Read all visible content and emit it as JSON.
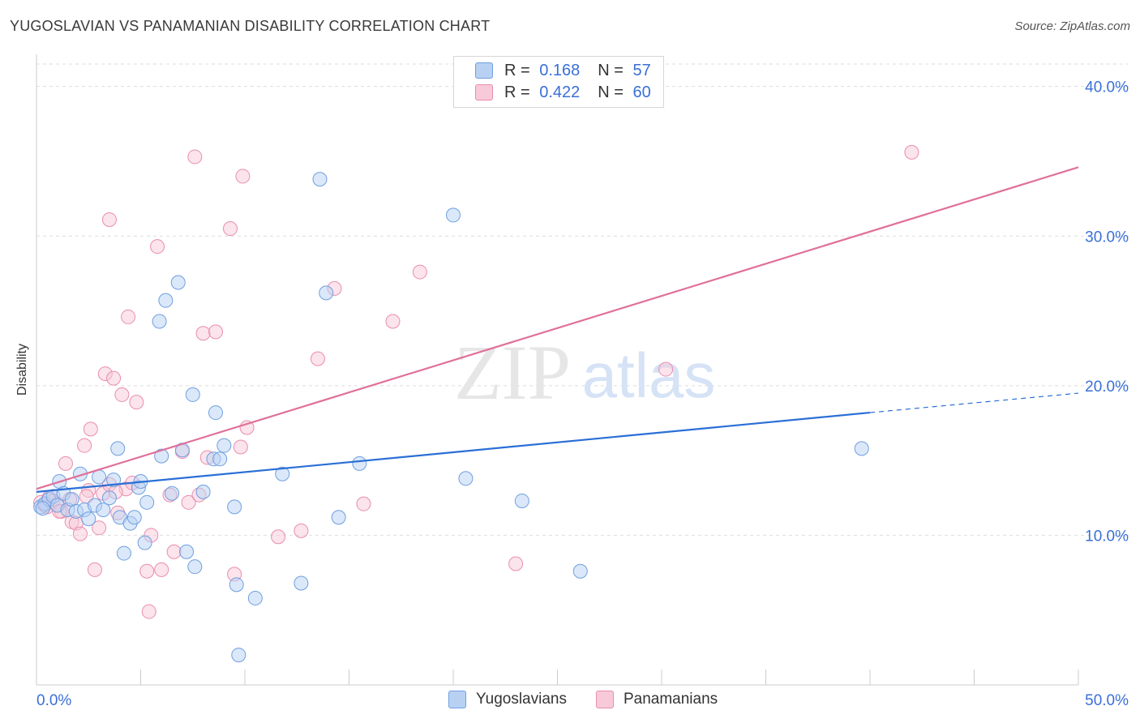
{
  "header": {
    "title": "YUGOSLAVIAN VS PANAMANIAN DISABILITY CORRELATION CHART",
    "source": "Source: ZipAtlas.com"
  },
  "watermark": {
    "zip": "ZIP",
    "atlas": "atlas"
  },
  "legend": {
    "rows": [
      {
        "r_label": "R =",
        "r_value": "0.168",
        "n_label": "N =",
        "n_value": "57"
      },
      {
        "r_label": "R =",
        "r_value": "0.422",
        "n_label": "N =",
        "n_value": "60"
      }
    ]
  },
  "bottom_legend": {
    "series1": "Yugoslavians",
    "series2": "Panamanians"
  },
  "colors": {
    "blue_fill": "#b8d1f3",
    "blue_stroke": "#6f9fe0",
    "blue_line": "#2a6fd6",
    "pink_fill": "#f8c9d8",
    "pink_stroke": "#e98db0",
    "pink_line": "#e0709a",
    "axis_text": "#3a6fd8",
    "grid": "#dddddd"
  },
  "chart_data": {
    "type": "scatter",
    "title": "YUGOSLAVIAN VS PANAMANIAN DISABILITY CORRELATION CHART",
    "xlabel": "",
    "ylabel": "Disability",
    "xlim": [
      0,
      50
    ],
    "ylim": [
      0,
      41.5
    ],
    "x_tick_labels": [
      "0.0%",
      "50.0%"
    ],
    "y_ticks": [
      10,
      20,
      30,
      40
    ],
    "y_tick_labels": [
      "10.0%",
      "20.0%",
      "30.0%",
      "40.0%"
    ],
    "grid": true,
    "legend_position": "top-center",
    "series": [
      {
        "name": "Yugoslavians",
        "r": 0.168,
        "n": 57,
        "trend": {
          "x0": 0,
          "y0": 12.9,
          "x1": 40,
          "y1": 18.2,
          "dash_x_end": 50,
          "dash_y_end": 19.5
        },
        "points": [
          [
            0.2,
            11.9
          ],
          [
            0.4,
            12.1
          ],
          [
            0.6,
            12.4
          ],
          [
            0.8,
            12.6
          ],
          [
            1.0,
            12.0
          ],
          [
            1.1,
            13.6
          ],
          [
            1.3,
            12.8
          ],
          [
            1.5,
            11.7
          ],
          [
            1.7,
            12.4
          ],
          [
            1.9,
            11.6
          ],
          [
            2.1,
            14.1
          ],
          [
            2.3,
            11.7
          ],
          [
            2.5,
            11.1
          ],
          [
            2.8,
            12.0
          ],
          [
            3.0,
            13.9
          ],
          [
            3.2,
            11.7
          ],
          [
            3.5,
            12.5
          ],
          [
            3.7,
            13.7
          ],
          [
            3.9,
            15.8
          ],
          [
            4.0,
            11.2
          ],
          [
            4.2,
            8.8
          ],
          [
            4.5,
            10.8
          ],
          [
            4.7,
            11.2
          ],
          [
            4.9,
            13.2
          ],
          [
            5.0,
            13.6
          ],
          [
            5.2,
            9.5
          ],
          [
            5.3,
            12.2
          ],
          [
            5.9,
            24.3
          ],
          [
            6.0,
            15.3
          ],
          [
            6.2,
            25.7
          ],
          [
            6.5,
            12.8
          ],
          [
            6.8,
            26.9
          ],
          [
            7.0,
            15.7
          ],
          [
            7.2,
            8.9
          ],
          [
            7.5,
            19.4
          ],
          [
            7.6,
            7.9
          ],
          [
            8.0,
            12.9
          ],
          [
            8.5,
            15.1
          ],
          [
            8.6,
            18.2
          ],
          [
            8.8,
            15.1
          ],
          [
            9.0,
            16.0
          ],
          [
            9.5,
            11.9
          ],
          [
            9.6,
            6.7
          ],
          [
            9.7,
            2.0
          ],
          [
            10.5,
            5.8
          ],
          [
            11.8,
            14.1
          ],
          [
            12.7,
            6.8
          ],
          [
            13.6,
            33.8
          ],
          [
            13.9,
            26.2
          ],
          [
            14.5,
            11.2
          ],
          [
            15.5,
            14.8
          ],
          [
            20.0,
            31.4
          ],
          [
            20.6,
            13.8
          ],
          [
            23.3,
            12.3
          ],
          [
            26.1,
            7.6
          ],
          [
            39.6,
            15.8
          ],
          [
            0.3,
            11.8
          ]
        ]
      },
      {
        "name": "Panamanians",
        "r": 0.422,
        "n": 60,
        "trend": {
          "x0": 0,
          "y0": 13.1,
          "x1": 50,
          "y1": 34.6
        },
        "points": [
          [
            0.2,
            12.2
          ],
          [
            0.4,
            12.0
          ],
          [
            0.6,
            12.5
          ],
          [
            0.8,
            12.3
          ],
          [
            1.0,
            12.1
          ],
          [
            1.2,
            11.6
          ],
          [
            1.4,
            14.8
          ],
          [
            1.6,
            12.4
          ],
          [
            1.7,
            10.9
          ],
          [
            1.9,
            10.8
          ],
          [
            2.1,
            10.1
          ],
          [
            2.3,
            16.0
          ],
          [
            2.5,
            13.0
          ],
          [
            2.6,
            17.1
          ],
          [
            2.8,
            7.7
          ],
          [
            3.0,
            10.5
          ],
          [
            3.2,
            12.8
          ],
          [
            3.3,
            20.8
          ],
          [
            3.5,
            13.4
          ],
          [
            3.5,
            31.1
          ],
          [
            3.7,
            20.5
          ],
          [
            3.9,
            11.5
          ],
          [
            4.1,
            19.4
          ],
          [
            4.3,
            13.1
          ],
          [
            4.4,
            24.6
          ],
          [
            4.6,
            13.5
          ],
          [
            4.8,
            18.9
          ],
          [
            5.3,
            7.6
          ],
          [
            5.4,
            4.9
          ],
          [
            5.5,
            10.0
          ],
          [
            5.8,
            29.3
          ],
          [
            6.0,
            7.7
          ],
          [
            6.4,
            12.7
          ],
          [
            6.6,
            8.9
          ],
          [
            7.0,
            15.6
          ],
          [
            7.3,
            12.2
          ],
          [
            7.6,
            35.3
          ],
          [
            7.8,
            12.7
          ],
          [
            8.0,
            23.5
          ],
          [
            8.2,
            15.2
          ],
          [
            8.6,
            23.6
          ],
          [
            9.3,
            30.5
          ],
          [
            9.5,
            7.4
          ],
          [
            9.8,
            15.9
          ],
          [
            9.9,
            34.0
          ],
          [
            10.1,
            17.2
          ],
          [
            11.6,
            9.9
          ],
          [
            12.7,
            10.3
          ],
          [
            13.5,
            21.8
          ],
          [
            14.3,
            26.5
          ],
          [
            15.7,
            12.1
          ],
          [
            17.1,
            24.3
          ],
          [
            18.4,
            27.6
          ],
          [
            23.0,
            8.1
          ],
          [
            30.2,
            21.1
          ],
          [
            42.0,
            35.6
          ],
          [
            0.5,
            11.9
          ],
          [
            1.1,
            11.6
          ],
          [
            2.4,
            12.6
          ],
          [
            3.8,
            12.9
          ]
        ]
      }
    ]
  }
}
